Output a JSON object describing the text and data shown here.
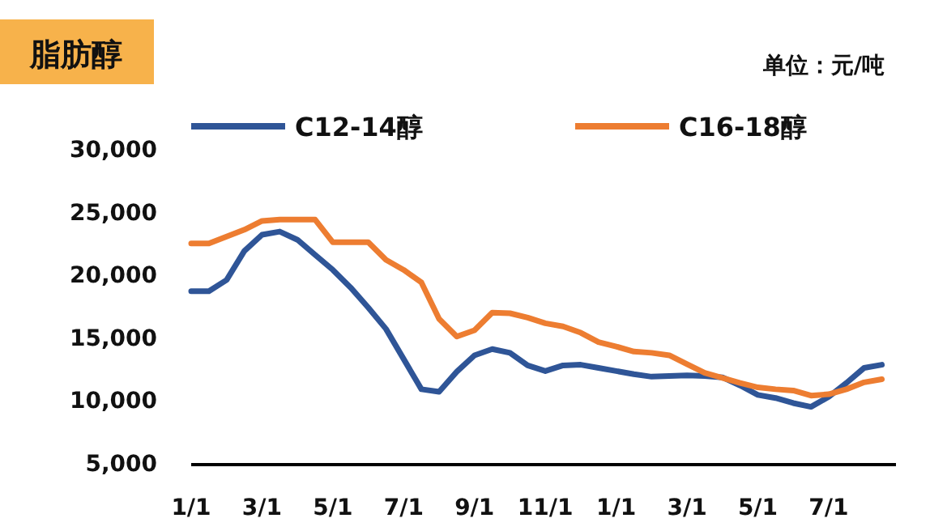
{
  "chart_data": {
    "type": "line",
    "title": "脂肪醇",
    "annotations": [
      "单位：元/吨"
    ],
    "categories": [
      "1/1",
      null,
      null,
      null,
      "3/1",
      null,
      null,
      null,
      "5/1",
      null,
      null,
      null,
      "7/1",
      null,
      null,
      null,
      "9/1",
      null,
      null,
      null,
      "11/1",
      null,
      null,
      null,
      "1/1",
      null,
      null,
      null,
      "3/1",
      null,
      null,
      null,
      "5/1",
      null,
      null,
      null,
      "7/1",
      null,
      null,
      null
    ],
    "ylim": [
      5000,
      30000
    ],
    "yticks": [
      {
        "value": 5000,
        "label": "5,000"
      },
      {
        "value": 10000,
        "label": "10,000"
      },
      {
        "value": 15000,
        "label": "15,000"
      },
      {
        "value": 20000,
        "label": "20,000"
      },
      {
        "value": 25000,
        "label": "25,000"
      },
      {
        "value": 30000,
        "label": "30,000"
      }
    ],
    "grid": false,
    "legend": "top",
    "marker": "none",
    "line_style": "solid",
    "series": [
      {
        "name": "C12-14醇",
        "color": "#2f5597",
        "values": [
          18800,
          18800,
          19700,
          22000,
          23300,
          23550,
          22900,
          21700,
          20500,
          19100,
          17500,
          15800,
          13400,
          11000,
          10800,
          12400,
          13700,
          14200,
          13900,
          12900,
          12450,
          12900,
          12950,
          12700,
          12450,
          12200,
          12000,
          12050,
          12100,
          12050,
          11950,
          11300,
          10550,
          10300,
          9900,
          9600,
          10400,
          11500,
          12700,
          12950
        ]
      },
      {
        "name": "C16-18醇",
        "color": "#ed7d31",
        "values": [
          22600,
          22600,
          23150,
          23700,
          24400,
          24500,
          24500,
          24500,
          22700,
          22700,
          22700,
          21300,
          20500,
          19500,
          16600,
          15200,
          15700,
          17100,
          17050,
          16700,
          16250,
          16000,
          15500,
          14750,
          14400,
          14000,
          13900,
          13700,
          13000,
          12300,
          11900,
          11500,
          11150,
          11000,
          10900,
          10500,
          10600,
          11000,
          11550,
          11800
        ]
      }
    ]
  }
}
